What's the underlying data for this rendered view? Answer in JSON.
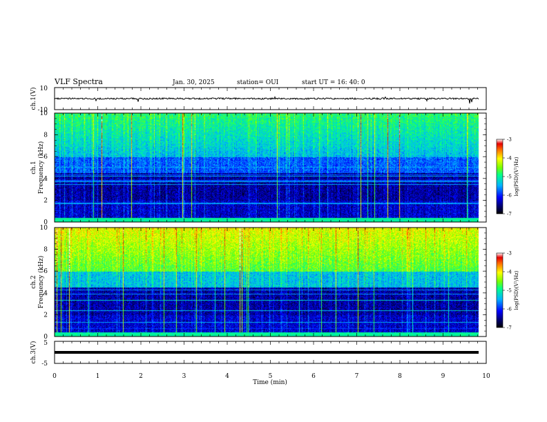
{
  "header": {
    "title": "VLF Spectra",
    "date": "Jan. 30, 2025",
    "station": "station= OUI",
    "start": "start  UT =   16: 40: 0"
  },
  "chart_data": [
    {
      "type": "line",
      "name": "ch1-waveform",
      "ylabel": "ch.1(V)",
      "ylim": [
        -10,
        10
      ],
      "y_ticks": [
        "10",
        "-10"
      ],
      "approx_level": 0
    },
    {
      "type": "heatmap",
      "name": "ch1-spectrogram",
      "ylabel_line1": "ch.1",
      "ylabel_line2": "Frequency  (kHz)",
      "ylim": [
        0,
        10
      ],
      "y_ticks": [
        "0",
        "2",
        "4",
        "6",
        "8",
        "10"
      ],
      "colorbar": {
        "label": "log(PSD)(V²/Hz)",
        "range": [
          -7,
          -3
        ],
        "ticks": [
          "-3",
          "-4",
          "-5",
          "-6",
          "-7"
        ]
      }
    },
    {
      "type": "heatmap",
      "name": "ch2-spectrogram",
      "ylabel_line1": "ch.2",
      "ylabel_line2": "Frequency  (kHz)",
      "ylim": [
        0,
        10
      ],
      "y_ticks": [
        "0",
        "2",
        "4",
        "6",
        "8",
        "10"
      ],
      "colorbar": {
        "label": "log(PSD)(V²/Hz)",
        "range": [
          -7,
          -3
        ],
        "ticks": [
          "-3",
          "-4",
          "-5",
          "-6",
          "-7"
        ]
      }
    },
    {
      "type": "line",
      "name": "ch3-waveform",
      "ylabel": "ch.3(V)",
      "ylim": [
        -5,
        5
      ],
      "y_ticks": [
        "5",
        "-5"
      ],
      "approx_level": 0
    }
  ],
  "x_axis": {
    "label": "Time  (min)",
    "range": [
      0,
      10
    ],
    "ticks": [
      "0",
      "1",
      "2",
      "3",
      "4",
      "5",
      "6",
      "7",
      "8",
      "9",
      "10"
    ]
  }
}
